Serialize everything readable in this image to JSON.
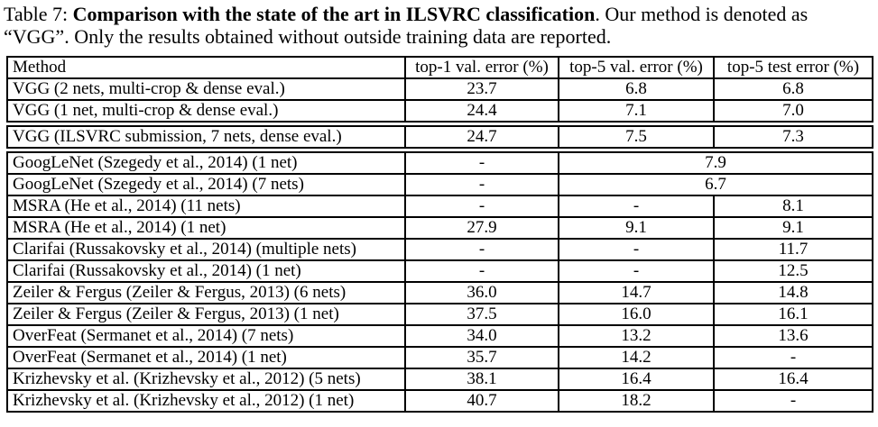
{
  "caption": {
    "prefix": "Table 7: ",
    "title": "Comparison with the state of the art in ILSVRC classification",
    "rest": ". Our method is denoted as “VGG”. Only the results obtained without outside training data are reported."
  },
  "colors": {
    "text": "#000000",
    "background": "#ffffff",
    "border": "#000000"
  },
  "table": {
    "headers": [
      "Method",
      "top-1 val. error (%)",
      "top-5 val. error (%)",
      "top-5 test error (%)"
    ],
    "g1": [
      {
        "method": "VGG (2 nets, multi-crop & dense eval.)",
        "top1": "23.7",
        "top5_val": "6.8",
        "top5_test": "6.8"
      },
      {
        "method": "VGG (1 net, multi-crop & dense eval.)",
        "top1": "24.4",
        "top5_val": "7.1",
        "top5_test": "7.0"
      }
    ],
    "g2": [
      {
        "method": "VGG (ILSVRC submission, 7 nets, dense eval.)",
        "top1": "24.7",
        "top5_val": "7.5",
        "top5_test": "7.3"
      }
    ],
    "g3": [
      {
        "method": "GoogLeNet (Szegedy et al., 2014) (1 net)",
        "top1": "-",
        "top5": "7.9"
      },
      {
        "method": "GoogLeNet (Szegedy et al., 2014) (7 nets)",
        "top1": "-",
        "top5": "6.7"
      },
      {
        "method": "MSRA (He et al., 2014) (11 nets)",
        "top1": "-",
        "top5_val": "-",
        "top5_test": "8.1"
      },
      {
        "method": "MSRA (He et al., 2014) (1 net)",
        "top1": "27.9",
        "top5_val": "9.1",
        "top5_test": "9.1"
      },
      {
        "method": "Clarifai (Russakovsky et al., 2014) (multiple nets)",
        "top1": "-",
        "top5_val": "-",
        "top5_test": "11.7"
      },
      {
        "method": "Clarifai (Russakovsky et al., 2014) (1 net)",
        "top1": "-",
        "top5_val": "-",
        "top5_test": "12.5"
      },
      {
        "method": "Zeiler & Fergus (Zeiler & Fergus, 2013) (6 nets)",
        "top1": "36.0",
        "top5_val": "14.7",
        "top5_test": "14.8"
      },
      {
        "method": "Zeiler & Fergus (Zeiler & Fergus, 2013) (1 net)",
        "top1": "37.5",
        "top5_val": "16.0",
        "top5_test": "16.1"
      },
      {
        "method": "OverFeat (Sermanet et al., 2014) (7 nets)",
        "top1": "34.0",
        "top5_val": "13.2",
        "top5_test": "13.6"
      },
      {
        "method": "OverFeat (Sermanet et al., 2014) (1 net)",
        "top1": "35.7",
        "top5_val": "14.2",
        "top5_test": "-"
      },
      {
        "method": "Krizhevsky et al. (Krizhevsky et al., 2012) (5 nets)",
        "top1": "38.1",
        "top5_val": "16.4",
        "top5_test": "16.4"
      },
      {
        "method": "Krizhevsky et al. (Krizhevsky et al., 2012) (1 net)",
        "top1": "40.7",
        "top5_val": "18.2",
        "top5_test": "-"
      }
    ]
  }
}
